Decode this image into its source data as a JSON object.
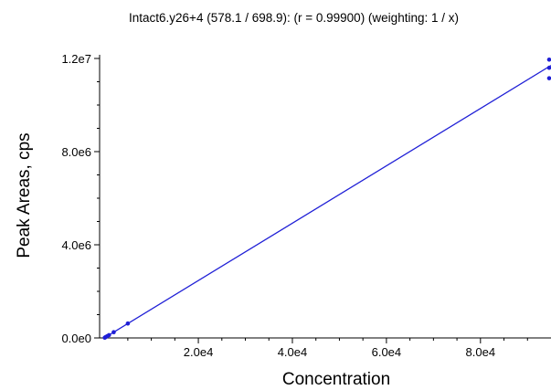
{
  "chart_data": {
    "type": "scatter",
    "title": "Intact6.y26+4 (578.1 / 698.9): (r = 0.99900)  (weighting: 1 / x)",
    "xlabel": "Concentration",
    "ylabel": "Peak Areas, cps",
    "xlim": [
      -1000,
      95000
    ],
    "ylim": [
      0,
      12000000
    ],
    "x_ticks": [
      20000,
      40000,
      60000,
      80000
    ],
    "x_tick_labels": [
      "2.0e4",
      "4.0e4",
      "6.0e4",
      "8.0e4"
    ],
    "y_ticks": [
      0,
      4000000,
      8000000,
      12000000
    ],
    "y_tick_labels": [
      "0.0e0",
      "4.0e6",
      "8.0e6",
      "1.2e7"
    ],
    "grid": false,
    "regression_line": {
      "x": [
        0,
        95000
      ],
      "y": [
        0,
        11700000
      ],
      "color": "#1f1fd6"
    },
    "series": [
      {
        "x": [
          100,
          300,
          600,
          1000,
          2000,
          5000,
          95000,
          95000,
          95000
        ],
        "y": [
          12000,
          37000,
          74000,
          123000,
          246000,
          620000,
          11150000,
          11600000,
          11950000
        ],
        "color": "#1f1fd6"
      }
    ]
  }
}
